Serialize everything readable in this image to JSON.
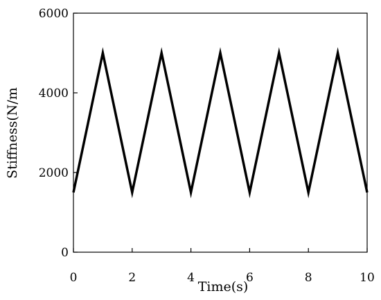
{
  "chart_data": {
    "type": "line",
    "title": "",
    "xlabel": "Time(s)",
    "ylabel": "Stiffness(N/m",
    "xlim": [
      0,
      10
    ],
    "ylim": [
      0,
      6000
    ],
    "xticks": [
      0,
      2,
      4,
      6,
      8,
      10
    ],
    "yticks": [
      0,
      2000,
      4000,
      6000
    ],
    "grid": false,
    "series": [
      {
        "color": "#000000",
        "x": [
          0,
          1,
          2,
          3,
          4,
          5,
          6,
          7,
          8,
          9,
          10
        ],
        "y": [
          1500,
          5000,
          1500,
          5000,
          1500,
          5000,
          1500,
          5000,
          1500,
          5000,
          1500
        ]
      }
    ]
  }
}
